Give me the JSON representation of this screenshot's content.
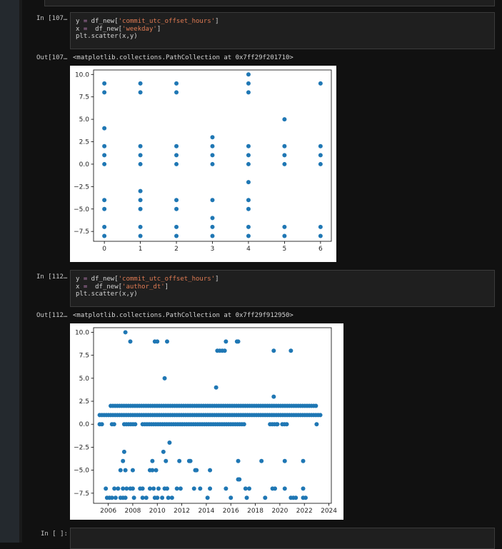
{
  "cells": [
    {
      "in_prompt": "In [107…",
      "code": [
        "y = df_new['commit_utc_offset_hours']",
        "x =  df_new['weekday']",
        "plt.scatter(x,y)"
      ],
      "out_prompt": "Out[107…",
      "out_text": "<matplotlib.collections.PathCollection at 0x7ff29f201710>"
    },
    {
      "in_prompt": "In [112…",
      "code": [
        "y = df_new['commit_utc_offset_hours']",
        "x =  df_new['author_dt']",
        "plt.scatter(x,y)"
      ],
      "out_prompt": "Out[112…",
      "out_text": "<matplotlib.collections.PathCollection at 0x7ff29f912950>"
    },
    {
      "in_prompt": "In [ ]:"
    }
  ],
  "colors": {
    "marker": "#1f77b4",
    "background": "#111111",
    "cell_bg": "#1f1f1f",
    "string": "#e07b53"
  },
  "chart_data": [
    {
      "type": "scatter",
      "title": "",
      "xlabel": "",
      "ylabel": "",
      "xlim": [
        -0.3,
        6.3
      ],
      "ylim": [
        -8.6,
        10.5
      ],
      "xticks": [
        "0",
        "1",
        "2",
        "3",
        "4",
        "5",
        "6"
      ],
      "yticks": [
        "10.0",
        "7.5",
        "5.0",
        "2.5",
        "0.0",
        "−2.5",
        "−5.0",
        "−7.5"
      ],
      "ytick_values": [
        10,
        7.5,
        5,
        2.5,
        0,
        -2.5,
        -5,
        -7.5
      ],
      "points": [
        [
          0,
          9
        ],
        [
          0,
          8
        ],
        [
          0,
          4
        ],
        [
          0,
          2
        ],
        [
          0,
          1
        ],
        [
          0,
          0
        ],
        [
          0,
          -4
        ],
        [
          0,
          -5
        ],
        [
          0,
          -7
        ],
        [
          0,
          -8
        ],
        [
          1,
          9
        ],
        [
          1,
          8
        ],
        [
          1,
          2
        ],
        [
          1,
          1
        ],
        [
          1,
          0
        ],
        [
          1,
          -3
        ],
        [
          1,
          -4
        ],
        [
          1,
          -5
        ],
        [
          1,
          -7
        ],
        [
          1,
          -8
        ],
        [
          2,
          9
        ],
        [
          2,
          8
        ],
        [
          2,
          2
        ],
        [
          2,
          1
        ],
        [
          2,
          0
        ],
        [
          2,
          -4
        ],
        [
          2,
          -5
        ],
        [
          2,
          -7
        ],
        [
          2,
          -8
        ],
        [
          3,
          3
        ],
        [
          3,
          2
        ],
        [
          3,
          1
        ],
        [
          3,
          0
        ],
        [
          3,
          -4
        ],
        [
          3,
          -6
        ],
        [
          3,
          -7
        ],
        [
          3,
          -8
        ],
        [
          4,
          10
        ],
        [
          4,
          9
        ],
        [
          4,
          8
        ],
        [
          4,
          2
        ],
        [
          4,
          1
        ],
        [
          4,
          0
        ],
        [
          4,
          -2
        ],
        [
          4,
          -4
        ],
        [
          4,
          -5
        ],
        [
          4,
          -7
        ],
        [
          4,
          -8
        ],
        [
          5,
          5
        ],
        [
          5,
          2
        ],
        [
          5,
          1
        ],
        [
          5,
          0
        ],
        [
          5,
          -7
        ],
        [
          5,
          -8
        ],
        [
          6,
          9
        ],
        [
          6,
          2
        ],
        [
          6,
          1
        ],
        [
          6,
          0
        ],
        [
          6,
          -7
        ],
        [
          6,
          -8
        ]
      ]
    },
    {
      "type": "scatter",
      "title": "",
      "xlabel": "",
      "ylabel": "",
      "xlim": [
        2004.8,
        2024.2
      ],
      "ylim": [
        -8.6,
        10.5
      ],
      "xticks": [
        "2006",
        "2008",
        "2010",
        "2012",
        "2014",
        "2016",
        "2018",
        "2020",
        "2022",
        "2024"
      ],
      "xtick_values": [
        2006,
        2008,
        2010,
        2012,
        2014,
        2016,
        2018,
        2020,
        2022,
        2024
      ],
      "yticks": [
        "10.0",
        "7.5",
        "5.0",
        "2.5",
        "0.0",
        "−2.5",
        "−5.0",
        "−7.5"
      ],
      "ytick_values": [
        10,
        7.5,
        5,
        2.5,
        0,
        -2.5,
        -5,
        -7.5
      ],
      "bands": [
        {
          "y": 2,
          "ranges": [
            [
              2006.2,
              2023.1
            ]
          ]
        },
        {
          "y": 1,
          "ranges": [
            [
              2005.3,
              2023.3
            ]
          ]
        },
        {
          "y": 0,
          "ranges": [
            [
              2005.3,
              2005.6
            ],
            [
              2006.3,
              2006.6
            ],
            [
              2007.3,
              2008.2
            ],
            [
              2008.8,
              2017.2
            ],
            [
              2019.2,
              2019.8
            ],
            [
              2020.2,
              2020.6
            ]
          ]
        }
      ],
      "points": [
        [
          2007.4,
          10
        ],
        [
          2007.8,
          9
        ],
        [
          2009.8,
          9
        ],
        [
          2010.0,
          9
        ],
        [
          2010.8,
          9
        ],
        [
          2015.6,
          9
        ],
        [
          2016.5,
          9
        ],
        [
          2016.6,
          9
        ],
        [
          2014.9,
          8
        ],
        [
          2015.1,
          8
        ],
        [
          2015.3,
          8
        ],
        [
          2015.5,
          8
        ],
        [
          2019.5,
          8
        ],
        [
          2020.9,
          8
        ],
        [
          2010.6,
          5
        ],
        [
          2014.8,
          4
        ],
        [
          2019.5,
          3
        ],
        [
          2023.0,
          0
        ],
        [
          2019.8,
          0
        ],
        [
          2011.0,
          -2
        ],
        [
          2007.3,
          -3
        ],
        [
          2010.5,
          -3
        ],
        [
          2007.2,
          -4
        ],
        [
          2009.6,
          -4
        ],
        [
          2010.7,
          -4
        ],
        [
          2011.8,
          -4
        ],
        [
          2012.6,
          -4
        ],
        [
          2012.7,
          -4
        ],
        [
          2016.6,
          -4
        ],
        [
          2018.5,
          -4
        ],
        [
          2020.4,
          -4
        ],
        [
          2021.9,
          -4
        ],
        [
          2007.0,
          -5
        ],
        [
          2007.4,
          -5
        ],
        [
          2008.0,
          -5
        ],
        [
          2009.4,
          -5
        ],
        [
          2009.6,
          -5
        ],
        [
          2009.9,
          -5
        ],
        [
          2013.1,
          -5
        ],
        [
          2013.2,
          -5
        ],
        [
          2014.3,
          -5
        ],
        [
          2016.6,
          -6
        ],
        [
          2016.7,
          -6
        ],
        [
          2005.8,
          -7
        ],
        [
          2006.5,
          -7
        ],
        [
          2006.8,
          -7
        ],
        [
          2007.2,
          -7
        ],
        [
          2007.5,
          -7
        ],
        [
          2007.8,
          -7
        ],
        [
          2008.0,
          -7
        ],
        [
          2008.6,
          -7
        ],
        [
          2008.8,
          -7
        ],
        [
          2009.4,
          -7
        ],
        [
          2009.7,
          -7
        ],
        [
          2010.1,
          -7
        ],
        [
          2010.6,
          -7
        ],
        [
          2010.8,
          -7
        ],
        [
          2011.6,
          -7
        ],
        [
          2011.9,
          -7
        ],
        [
          2013.0,
          -7
        ],
        [
          2013.5,
          -7
        ],
        [
          2014.3,
          -7
        ],
        [
          2015.6,
          -7
        ],
        [
          2017.2,
          -7
        ],
        [
          2017.5,
          -7
        ],
        [
          2019.4,
          -7
        ],
        [
          2019.6,
          -7
        ],
        [
          2020.4,
          -7
        ],
        [
          2021.9,
          -7
        ],
        [
          2005.9,
          -8
        ],
        [
          2006.1,
          -8
        ],
        [
          2006.3,
          -8
        ],
        [
          2006.6,
          -8
        ],
        [
          2007.0,
          -8
        ],
        [
          2007.2,
          -8
        ],
        [
          2007.4,
          -8
        ],
        [
          2008.1,
          -8
        ],
        [
          2008.8,
          -8
        ],
        [
          2009.1,
          -8
        ],
        [
          2009.8,
          -8
        ],
        [
          2010.0,
          -8
        ],
        [
          2010.4,
          -8
        ],
        [
          2010.9,
          -8
        ],
        [
          2011.2,
          -8
        ],
        [
          2014.1,
          -8
        ],
        [
          2016.0,
          -8
        ],
        [
          2017.3,
          -8
        ],
        [
          2018.8,
          -8
        ],
        [
          2020.9,
          -8
        ],
        [
          2021.1,
          -8
        ],
        [
          2021.3,
          -8
        ],
        [
          2021.9,
          -8
        ],
        [
          2022.1,
          -8
        ]
      ]
    }
  ]
}
